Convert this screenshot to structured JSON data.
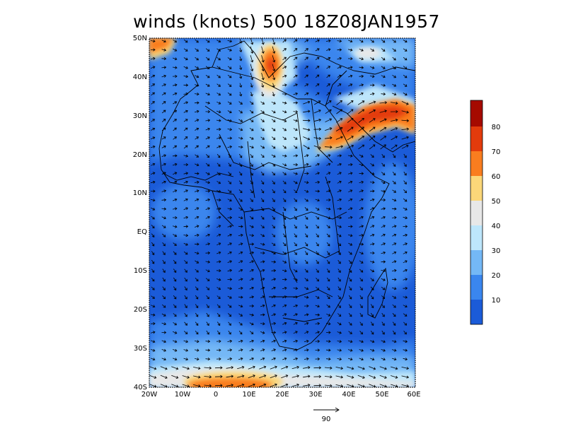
{
  "title": "winds (knots) 500  18Z08JAN1957",
  "y_axis_labels": [
    "50N",
    "40N",
    "30N",
    "20N",
    "10N",
    "EQ",
    "10S",
    "20S",
    "30S",
    "40S"
  ],
  "x_axis_labels": [
    "20W",
    "10W",
    "0",
    "10E",
    "20E",
    "30E",
    "40E",
    "50E",
    "60E"
  ],
  "colorbar": {
    "labels": [
      "10",
      "20",
      "30",
      "40",
      "50",
      "60",
      "70",
      "80"
    ],
    "colors": [
      "#1b5bd8",
      "#3a86ee",
      "#74b8f6",
      "#bde6fb",
      "#e8e8e8",
      "#fbd779",
      "#f97d1f",
      "#e33b0c",
      "#a50a00"
    ]
  },
  "reference_vector": {
    "label": "90"
  },
  "map_extent": {
    "lon": [
      -20,
      60
    ],
    "lat": [
      -40,
      50
    ]
  }
}
